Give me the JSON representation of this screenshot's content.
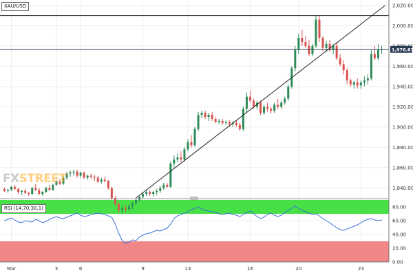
{
  "symbol_label": "XAU/USD",
  "rsi_label": "RSI (14,70,30,1)",
  "watermark": {
    "part1": "FX",
    "part2": "STREET"
  },
  "colors": {
    "up": "#2e8b57",
    "down": "#d9534f",
    "rsi_line": "#3a6fd8",
    "overbought_zone": "#33dd33",
    "oversold_zone": "#f07a7a",
    "price_badge": "#2b3a55",
    "grid": "#eeeeee"
  },
  "chart_data": [
    {
      "type": "candlestick",
      "title": "XAU/USD",
      "y_ticks": [
        "2,020.00",
        "2,000.00",
        "1,980.00",
        "1,960.00",
        "1,940.00",
        "1,920.00",
        "1,900.00",
        "1,880.00",
        "1,860.00",
        "1,840.00"
      ],
      "ylim": [
        1830,
        2024
      ],
      "last_price": "1,976.67",
      "resistance_level": 2010,
      "trendline_from": {
        "candle": 38,
        "price": 1830
      },
      "trendline_to": {
        "candle": 110,
        "price": 2020
      },
      "x_ticks": [
        {
          "label": "Mar",
          "candle": 2
        },
        {
          "label": "3",
          "candle": 15
        },
        {
          "label": "6",
          "candle": 22
        },
        {
          "label": "9",
          "candle": 40
        },
        {
          "label": "13",
          "candle": 53
        },
        {
          "label": "16",
          "candle": 71
        },
        {
          "label": "20",
          "candle": 85
        },
        {
          "label": "23",
          "candle": 103
        }
      ],
      "candles": [
        [
          1839,
          1840,
          1836,
          1837
        ],
        [
          1837,
          1839,
          1835,
          1838
        ],
        [
          1838,
          1842,
          1837,
          1841
        ],
        [
          1841,
          1843,
          1838,
          1839
        ],
        [
          1839,
          1840,
          1834,
          1836
        ],
        [
          1836,
          1838,
          1833,
          1837
        ],
        [
          1837,
          1839,
          1834,
          1835
        ],
        [
          1835,
          1836,
          1832,
          1834
        ],
        [
          1834,
          1841,
          1833,
          1840
        ],
        [
          1840,
          1844,
          1837,
          1838
        ],
        [
          1838,
          1840,
          1833,
          1834
        ],
        [
          1834,
          1837,
          1832,
          1836
        ],
        [
          1836,
          1841,
          1835,
          1840
        ],
        [
          1840,
          1843,
          1837,
          1838
        ],
        [
          1838,
          1844,
          1837,
          1843
        ],
        [
          1843,
          1848,
          1842,
          1846
        ],
        [
          1846,
          1849,
          1843,
          1844
        ],
        [
          1844,
          1852,
          1843,
          1850
        ],
        [
          1850,
          1856,
          1848,
          1854
        ],
        [
          1854,
          1857,
          1851,
          1855
        ],
        [
          1855,
          1858,
          1852,
          1856
        ],
        [
          1856,
          1858,
          1850,
          1852
        ],
        [
          1852,
          1856,
          1850,
          1855
        ],
        [
          1855,
          1856,
          1849,
          1850
        ],
        [
          1850,
          1853,
          1848,
          1852
        ],
        [
          1852,
          1854,
          1849,
          1851
        ],
        [
          1851,
          1853,
          1847,
          1850
        ],
        [
          1850,
          1852,
          1845,
          1846
        ],
        [
          1846,
          1850,
          1844,
          1848
        ],
        [
          1848,
          1851,
          1845,
          1847
        ],
        [
          1847,
          1848,
          1838,
          1840
        ],
        [
          1840,
          1841,
          1828,
          1830
        ],
        [
          1830,
          1832,
          1822,
          1824
        ],
        [
          1824,
          1826,
          1815,
          1818
        ],
        [
          1818,
          1822,
          1814,
          1820
        ],
        [
          1820,
          1823,
          1816,
          1819
        ],
        [
          1819,
          1824,
          1817,
          1822
        ],
        [
          1822,
          1826,
          1819,
          1825
        ],
        [
          1825,
          1830,
          1823,
          1828
        ],
        [
          1828,
          1832,
          1826,
          1831
        ],
        [
          1831,
          1836,
          1829,
          1834
        ],
        [
          1834,
          1838,
          1832,
          1836
        ],
        [
          1836,
          1838,
          1832,
          1834
        ],
        [
          1834,
          1837,
          1831,
          1836
        ],
        [
          1836,
          1839,
          1833,
          1837
        ],
        [
          1837,
          1842,
          1835,
          1840
        ],
        [
          1840,
          1845,
          1838,
          1843
        ],
        [
          1843,
          1845,
          1840,
          1841
        ],
        [
          1841,
          1866,
          1840,
          1864
        ],
        [
          1864,
          1872,
          1860,
          1868
        ],
        [
          1868,
          1874,
          1865,
          1870
        ],
        [
          1870,
          1876,
          1866,
          1868
        ],
        [
          1868,
          1880,
          1866,
          1878
        ],
        [
          1878,
          1888,
          1876,
          1885
        ],
        [
          1885,
          1892,
          1880,
          1882
        ],
        [
          1882,
          1900,
          1880,
          1898
        ],
        [
          1898,
          1915,
          1896,
          1912
        ],
        [
          1912,
          1916,
          1909,
          1914
        ],
        [
          1914,
          1916,
          1908,
          1910
        ],
        [
          1910,
          1914,
          1906,
          1912
        ],
        [
          1912,
          1915,
          1906,
          1908
        ],
        [
          1908,
          1910,
          1904,
          1905
        ],
        [
          1905,
          1908,
          1903,
          1906
        ],
        [
          1906,
          1908,
          1902,
          1904
        ],
        [
          1904,
          1907,
          1902,
          1905
        ],
        [
          1905,
          1907,
          1900,
          1903
        ],
        [
          1903,
          1906,
          1900,
          1904
        ],
        [
          1904,
          1907,
          1900,
          1902
        ],
        [
          1902,
          1904,
          1896,
          1898
        ],
        [
          1898,
          1920,
          1896,
          1918
        ],
        [
          1918,
          1934,
          1914,
          1930
        ],
        [
          1930,
          1936,
          1924,
          1926
        ],
        [
          1926,
          1928,
          1918,
          1920
        ],
        [
          1920,
          1926,
          1917,
          1924
        ],
        [
          1924,
          1926,
          1912,
          1914
        ],
        [
          1914,
          1922,
          1912,
          1920
        ],
        [
          1920,
          1924,
          1915,
          1918
        ],
        [
          1918,
          1920,
          1913,
          1916
        ],
        [
          1916,
          1924,
          1914,
          1922
        ],
        [
          1922,
          1928,
          1918,
          1920
        ],
        [
          1920,
          1926,
          1918,
          1924
        ],
        [
          1924,
          1930,
          1922,
          1928
        ],
        [
          1928,
          1942,
          1926,
          1940
        ],
        [
          1940,
          1960,
          1938,
          1958
        ],
        [
          1958,
          1980,
          1955,
          1976
        ],
        [
          1976,
          1992,
          1972,
          1988
        ],
        [
          1988,
          1996,
          1980,
          1984
        ],
        [
          1984,
          1990,
          1978,
          1980
        ],
        [
          1980,
          1986,
          1970,
          1972
        ],
        [
          1972,
          1982,
          1970,
          1980
        ],
        [
          1980,
          2010,
          1978,
          2006
        ],
        [
          2006,
          2010,
          1984,
          1988
        ],
        [
          1988,
          1990,
          1975,
          1978
        ],
        [
          1978,
          1985,
          1974,
          1982
        ],
        [
          1982,
          1986,
          1974,
          1976
        ],
        [
          1976,
          1982,
          1972,
          1980
        ],
        [
          1980,
          1984,
          1966,
          1968
        ],
        [
          1968,
          1972,
          1960,
          1962
        ],
        [
          1962,
          1966,
          1952,
          1956
        ],
        [
          1956,
          1958,
          1942,
          1946
        ],
        [
          1946,
          1948,
          1940,
          1942
        ],
        [
          1942,
          1946,
          1938,
          1944
        ],
        [
          1944,
          1948,
          1938,
          1941
        ],
        [
          1941,
          1946,
          1938,
          1944
        ],
        [
          1944,
          1950,
          1940,
          1946
        ],
        [
          1946,
          1952,
          1942,
          1948
        ],
        [
          1948,
          1976,
          1946,
          1972
        ],
        [
          1972,
          1980,
          1966,
          1968
        ],
        [
          1968,
          1982,
          1966,
          1976
        ],
        [
          1976,
          1980,
          1972,
          1977
        ]
      ]
    },
    {
      "type": "line",
      "title": "RSI (14,70,30,1)",
      "y_ticks": [
        "80.00",
        "60.00",
        "40.00",
        "20.00",
        "0.00"
      ],
      "ylim": [
        0,
        90
      ],
      "overbought": 70,
      "oversold": 30,
      "values": [
        60,
        62,
        64,
        61,
        58,
        57,
        60,
        59,
        58,
        62,
        60,
        57,
        59,
        62,
        64,
        66,
        64,
        63,
        65,
        67,
        69,
        71,
        68,
        66,
        67,
        69,
        70,
        71,
        70,
        69,
        67,
        65,
        55,
        42,
        31,
        27,
        29,
        32,
        31,
        36,
        39,
        41,
        42,
        44,
        46,
        45,
        47,
        49,
        55,
        63,
        67,
        69,
        71,
        73,
        76,
        78,
        80,
        77,
        75,
        74,
        73,
        72,
        70,
        69,
        70,
        71,
        69,
        68,
        66,
        69,
        72,
        74,
        70,
        66,
        63,
        65,
        69,
        71,
        68,
        66,
        68,
        72,
        75,
        78,
        81,
        78,
        75,
        73,
        71,
        69,
        70,
        67,
        63,
        60,
        57,
        53,
        50,
        47,
        46,
        48,
        50,
        52,
        54,
        57,
        60,
        62,
        63,
        61,
        60,
        61
      ]
    }
  ]
}
